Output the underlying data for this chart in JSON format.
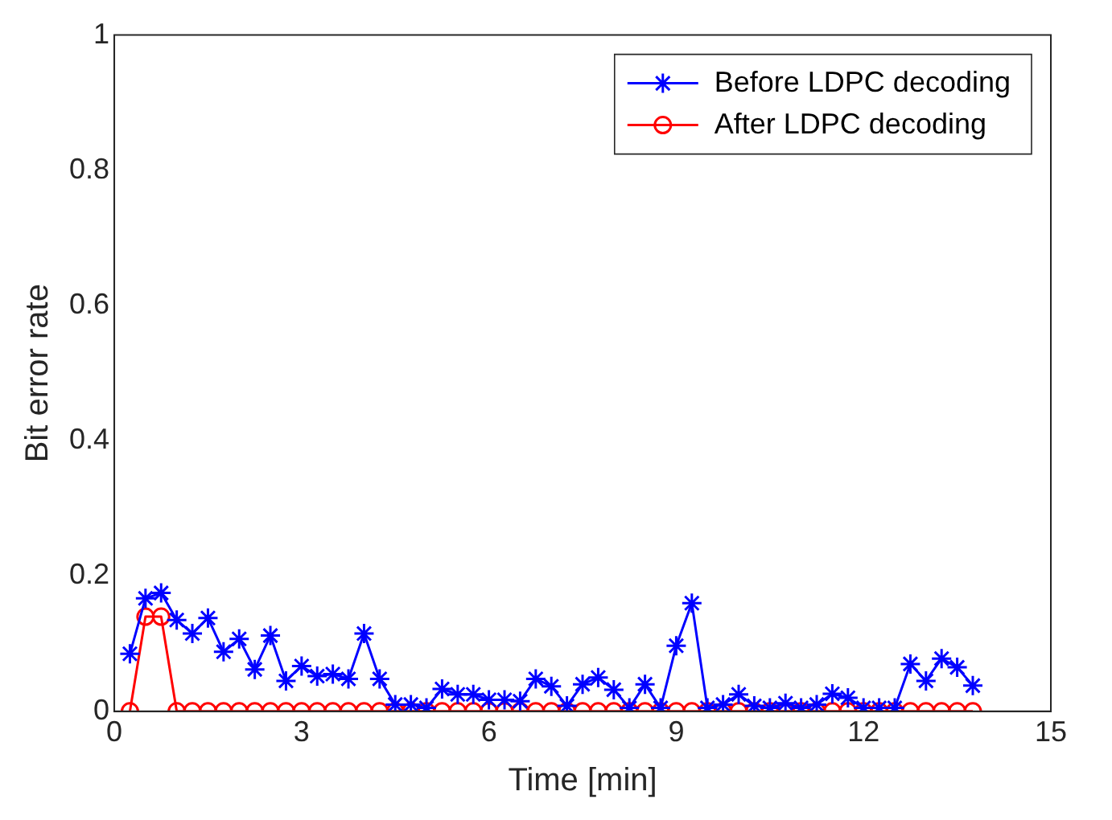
{
  "chart_data": {
    "type": "line",
    "xlabel": "Time [min]",
    "ylabel": "Bit error rate",
    "x": [
      0.25,
      0.5,
      0.75,
      1,
      1.25,
      1.5,
      1.75,
      2,
      2.25,
      2.5,
      2.75,
      3,
      3.25,
      3.5,
      3.75,
      4,
      4.25,
      4.5,
      4.75,
      5,
      5.25,
      5.5,
      5.75,
      6,
      6.25,
      6.5,
      6.75,
      7,
      7.25,
      7.5,
      7.75,
      8,
      8.25,
      8.5,
      8.75,
      9,
      9.25,
      9.5,
      9.75,
      10,
      10.25,
      10.5,
      10.75,
      11,
      11.25,
      11.5,
      11.75,
      12,
      12.25,
      12.5,
      12.75,
      13,
      13.25,
      13.5,
      13.75
    ],
    "series": [
      {
        "name": "Before LDPC decoding",
        "color": "#0000ff",
        "marker": "cross",
        "values": [
          0.085,
          0.167,
          0.175,
          0.135,
          0.115,
          0.138,
          0.088,
          0.107,
          0.062,
          0.112,
          0.045,
          0.067,
          0.052,
          0.055,
          0.048,
          0.115,
          0.048,
          0.01,
          0.01,
          0.005,
          0.033,
          0.025,
          0.025,
          0.017,
          0.017,
          0.015,
          0.048,
          0.037,
          0.008,
          0.04,
          0.05,
          0.032,
          0.005,
          0.04,
          0.005,
          0.097,
          0.16,
          0.005,
          0.01,
          0.025,
          0.008,
          0.005,
          0.012,
          0.005,
          0.01,
          0.026,
          0.02,
          0.005,
          0.005,
          0.005,
          0.07,
          0.045,
          0.078,
          0.065,
          0.038
        ]
      },
      {
        "name": "After LDPC decoding",
        "color": "#ff0000",
        "marker": "circle",
        "values": [
          0,
          0.14,
          0.14,
          0,
          0,
          0,
          0,
          0,
          0,
          0,
          0,
          0,
          0,
          0,
          0,
          0,
          0,
          0,
          0,
          0,
          0,
          0,
          0,
          0,
          0,
          0,
          0,
          0,
          0,
          0,
          0,
          0,
          0,
          0,
          0,
          0,
          0,
          0,
          0,
          0,
          0,
          0,
          0,
          0,
          0,
          0,
          0,
          0,
          0,
          0,
          0,
          0,
          0,
          0,
          0
        ]
      }
    ],
    "xlim": [
      0,
      15
    ],
    "xticks": [
      0,
      3,
      6,
      9,
      12,
      15
    ],
    "ylim": [
      0,
      1
    ],
    "yticks": [
      0,
      0.2,
      0.4,
      0.6,
      0.8,
      1
    ],
    "grid": false,
    "legend": "top right",
    "line_style": "solid"
  }
}
